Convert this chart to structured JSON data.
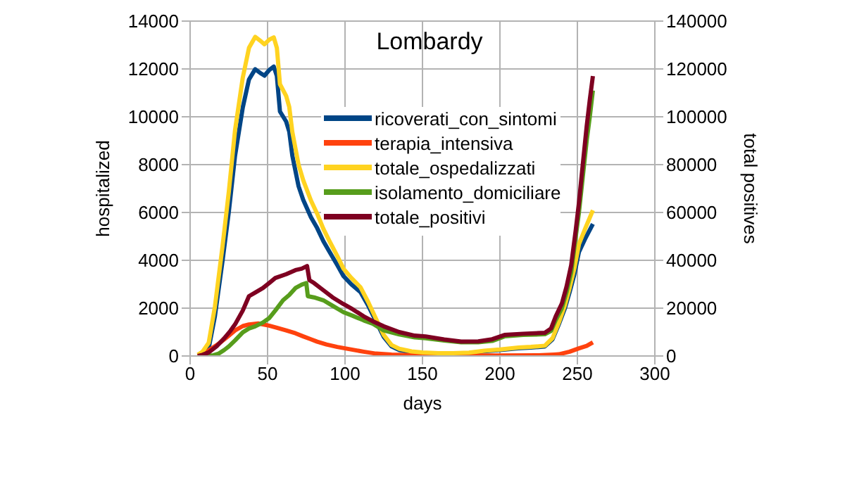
{
  "chart_data": {
    "type": "line",
    "title": "Lombardy",
    "xlabel": "days",
    "ylabel": "hospitalized",
    "y2label": "total positives",
    "xlim": [
      0,
      300
    ],
    "xticks": [
      0,
      50,
      100,
      150,
      200,
      250,
      300
    ],
    "ylim": [
      0,
      14000
    ],
    "yticks": [
      0,
      2000,
      4000,
      6000,
      8000,
      10000,
      12000,
      14000
    ],
    "y2lim": [
      0,
      140000
    ],
    "y2ticks": [
      0,
      20000,
      40000,
      60000,
      80000,
      100000,
      120000,
      140000
    ],
    "grid": true,
    "legend": "top",
    "marker": "none",
    "line_style": "solid",
    "series": [
      {
        "name": "ricoverati_con_sintomi",
        "color": "#004586",
        "x": [
          5,
          8,
          12,
          16,
          21,
          25,
          29,
          34,
          38,
          42,
          46,
          48,
          51,
          54,
          56,
          58,
          62,
          64,
          66,
          70,
          73,
          78,
          82,
          86,
          90,
          95,
          99,
          104,
          110,
          115,
          121,
          125,
          130,
          135,
          143,
          150,
          160,
          170,
          180,
          190,
          200,
          212,
          220,
          229,
          234,
          238,
          242,
          245,
          248,
          251,
          255,
          260
        ],
        "values": [
          50,
          100,
          320,
          1660,
          4010,
          6030,
          8370,
          10390,
          11560,
          11990,
          11800,
          11720,
          11950,
          12100,
          11700,
          10220,
          9800,
          9380,
          8370,
          7100,
          6530,
          5800,
          5350,
          4800,
          4350,
          3800,
          3340,
          3000,
          2670,
          2100,
          1320,
          800,
          400,
          250,
          150,
          120,
          100,
          100,
          120,
          200,
          250,
          320,
          350,
          400,
          700,
          1320,
          2000,
          2670,
          3400,
          4350,
          4900,
          5520
        ]
      },
      {
        "name": "terapia_intensiva",
        "color": "#ff420e",
        "x": [
          5,
          10,
          18,
          24,
          29,
          34,
          38,
          44,
          51,
          56,
          62,
          68,
          73,
          78,
          82,
          88,
          95,
          105,
          112,
          120,
          130,
          145,
          160,
          200,
          225,
          235,
          238,
          245,
          251,
          256,
          260
        ],
        "values": [
          0,
          150,
          490,
          800,
          1070,
          1250,
          1320,
          1360,
          1270,
          1180,
          1070,
          950,
          820,
          700,
          600,
          480,
          380,
          260,
          180,
          100,
          60,
          30,
          20,
          20,
          30,
          60,
          70,
          180,
          320,
          420,
          570
        ]
      },
      {
        "name": "totale_ospedalizzati",
        "color": "#ffd320",
        "x": [
          5,
          8,
          12,
          16,
          21,
          25,
          29,
          34,
          38,
          42,
          46,
          48,
          51,
          54,
          56,
          58,
          62,
          64,
          66,
          70,
          73,
          78,
          82,
          86,
          90,
          95,
          99,
          104,
          110,
          115,
          121,
          125,
          130,
          135,
          143,
          150,
          160,
          170,
          180,
          190,
          200,
          212,
          220,
          229,
          234,
          238,
          242,
          245,
          248,
          251,
          255,
          260
        ],
        "values": [
          50,
          180,
          550,
          2060,
          4630,
          6880,
          9440,
          11640,
          12880,
          13340,
          13140,
          13030,
          13220,
          13320,
          12880,
          11360,
          10870,
          10410,
          9360,
          8000,
          7350,
          6500,
          5950,
          5320,
          4800,
          4180,
          3650,
          3270,
          2870,
          2250,
          1420,
          880,
          460,
          300,
          190,
          150,
          120,
          120,
          140,
          220,
          270,
          350,
          380,
          430,
          750,
          1390,
          2130,
          2850,
          3650,
          4670,
          5320,
          6090
        ]
      },
      {
        "name": "isolamento_domiciliare",
        "color": "#579d1c",
        "axis": "y2",
        "x": [
          10,
          15,
          18.5,
          22,
          25,
          29,
          34,
          38,
          42,
          47,
          51,
          55,
          60,
          64,
          68,
          72,
          75,
          76,
          80,
          86,
          92,
          99,
          105,
          112,
          118,
          125,
          135,
          145,
          152,
          164,
          175,
          186,
          195,
          203,
          215,
          229,
          233,
          236,
          240,
          243,
          246,
          249,
          251,
          253,
          256,
          258,
          260
        ],
        "values": [
          0,
          300,
          1000,
          2500,
          4000,
          6500,
          9900,
          11500,
          12400,
          14000,
          15800,
          19000,
          23300,
          25500,
          28400,
          29800,
          30500,
          25000,
          24500,
          23300,
          21000,
          18300,
          16800,
          14900,
          13500,
          10700,
          9000,
          7800,
          7400,
          6500,
          5700,
          5700,
          6300,
          8200,
          8800,
          9100,
          10500,
          15000,
          20000,
          26700,
          35000,
          50200,
          60000,
          72000,
          90000,
          100000,
          111000
        ]
      },
      {
        "name": "totale_positivi",
        "color": "#7e0021",
        "axis": "y2",
        "x": [
          5,
          8,
          12,
          17,
          22,
          26,
          29,
          34,
          38,
          42,
          47,
          51,
          55,
          62,
          68,
          72,
          75.5,
          77,
          80,
          86,
          92,
          99,
          105,
          112,
          118,
          125,
          135,
          145,
          152,
          164,
          175,
          186,
          195,
          203,
          215,
          229,
          233,
          236,
          240,
          243,
          246,
          249,
          251,
          253,
          256,
          258,
          260
        ],
        "values": [
          0,
          500,
          1500,
          4000,
          7400,
          10500,
          13200,
          19000,
          25000,
          26500,
          28400,
          30500,
          32600,
          34200,
          35900,
          36500,
          37600,
          31700,
          30500,
          27500,
          24500,
          21700,
          19500,
          16600,
          14500,
          12400,
          10000,
          8500,
          8200,
          6900,
          6000,
          6100,
          7000,
          8800,
          9300,
          9700,
          11500,
          16500,
          22000,
          29000,
          38000,
          53000,
          64000,
          77000,
          96000,
          107000,
          117000
        ]
      }
    ]
  }
}
